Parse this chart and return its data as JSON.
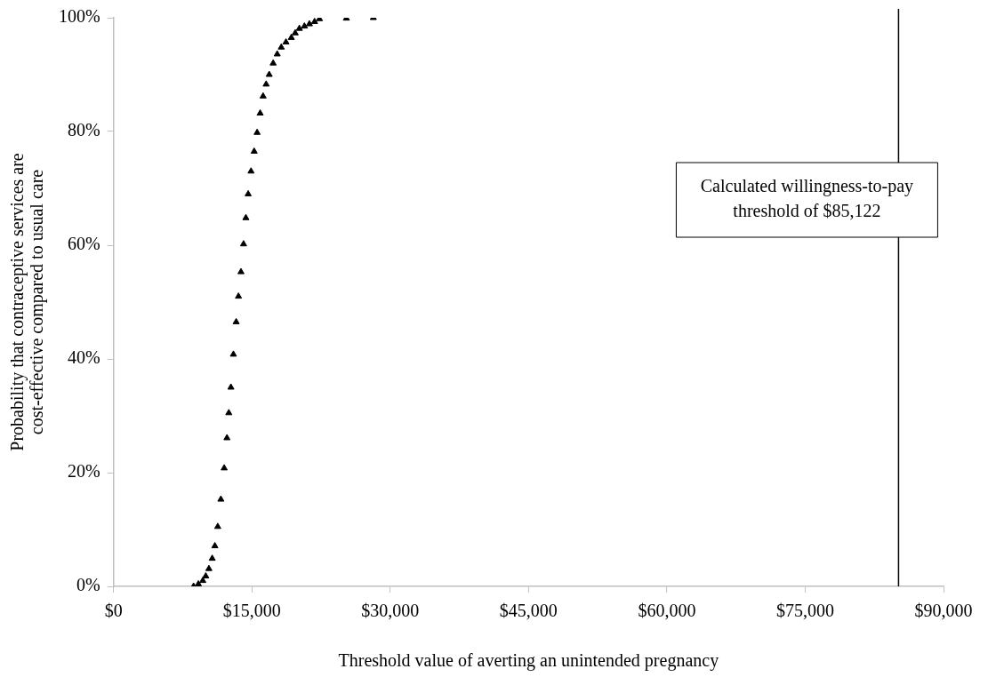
{
  "chart_data": {
    "type": "scatter",
    "xlabel": "Threshold value of averting an unintended pregnancy",
    "ylabel": "Probability that contraceptive services are cost-effective compared to usual care",
    "series": [
      {
        "color": "#000000",
        "x": [
          8680,
          9200,
          9680,
          10000,
          10340,
          10700,
          10990,
          11300,
          11640,
          12000,
          12300,
          12500,
          12730,
          13000,
          13300,
          13550,
          13820,
          14100,
          14350,
          14600,
          14910,
          15250,
          15570,
          15900,
          16220,
          16550,
          16880,
          17310,
          17750,
          18190,
          18700,
          19280,
          19700,
          20150,
          20700,
          21240,
          21800,
          22330,
          25250,
          28170
        ],
        "values": [
          0,
          0.4,
          1.0,
          1.8,
          3.1,
          4.9,
          7.1,
          10.5,
          15.3,
          20.8,
          26.1,
          30.5,
          35.0,
          40.8,
          46.5,
          51.0,
          55.3,
          60.2,
          64.8,
          69.0,
          73.0,
          76.5,
          79.8,
          83.2,
          86.2,
          88.3,
          90.0,
          92.0,
          93.6,
          94.8,
          95.7,
          96.5,
          97.3,
          98.1,
          98.5,
          98.9,
          99.3,
          99.8,
          99.9,
          100
        ]
      }
    ],
    "marker": "triangle",
    "xlim": [
      0,
      90000
    ],
    "ylim": [
      0,
      100
    ],
    "xticks": [
      {
        "value": 0,
        "label": "$0"
      },
      {
        "value": 15000,
        "label": "$15,000"
      },
      {
        "value": 30000,
        "label": "$30,000"
      },
      {
        "value": 45000,
        "label": "$45,000"
      },
      {
        "value": 60000,
        "label": "$60,000"
      },
      {
        "value": 75000,
        "label": "$75,000"
      },
      {
        "value": 90000,
        "label": "$90,000"
      }
    ],
    "yticks": [
      {
        "value": 0,
        "label": "0%"
      },
      {
        "value": 20,
        "label": "20%"
      },
      {
        "value": 40,
        "label": "40%"
      },
      {
        "value": 60,
        "label": "60%"
      },
      {
        "value": 80,
        "label": "80%"
      },
      {
        "value": 100,
        "label": "100%"
      }
    ],
    "grid": false,
    "legend": false,
    "ref_lines": [
      {
        "axis": "x",
        "value": 85122,
        "label": "Calculated willingness-to-pay threshold of $85,122",
        "color": "#000000"
      }
    ]
  }
}
